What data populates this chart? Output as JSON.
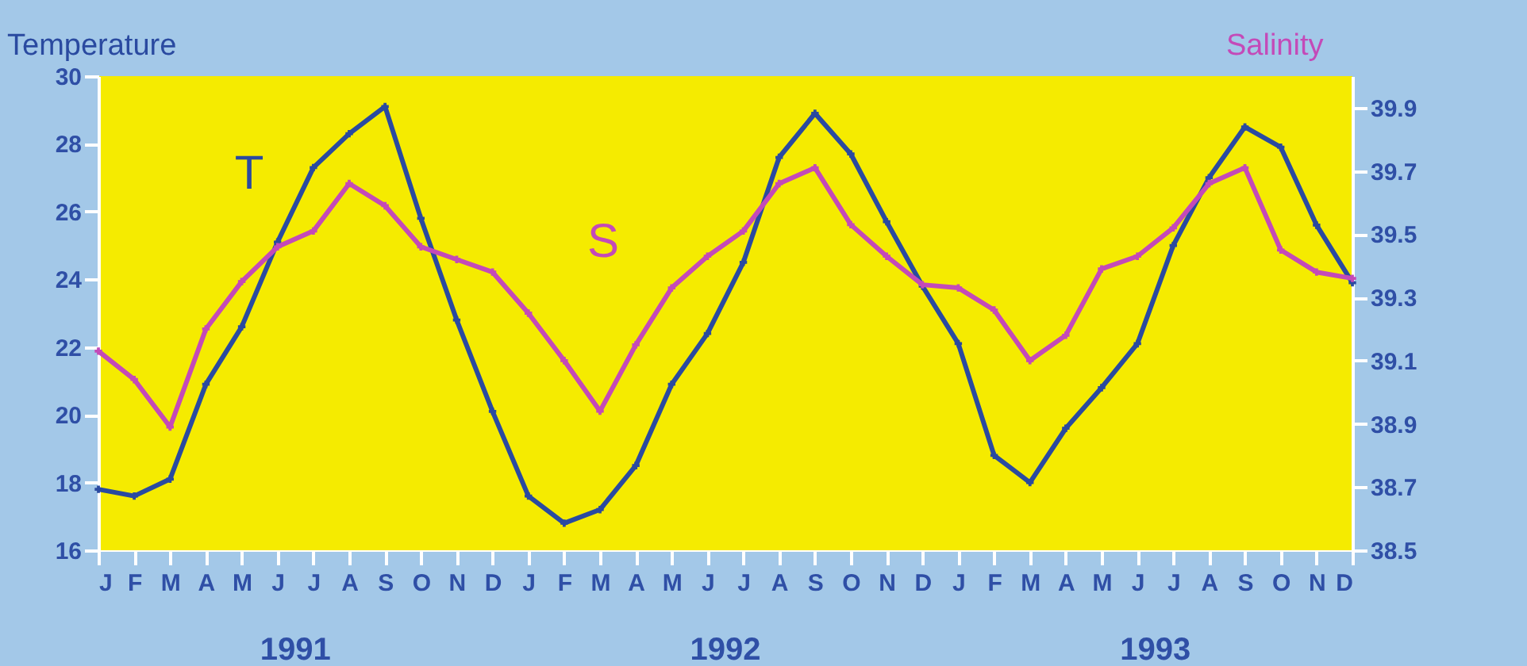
{
  "chart_data": {
    "type": "line",
    "ylabel": "Temperature",
    "y2label": "Salinity",
    "categories": [
      "J",
      "F",
      "M",
      "A",
      "M",
      "J",
      "J",
      "A",
      "S",
      "O",
      "N",
      "D",
      "J",
      "F",
      "M",
      "A",
      "M",
      "J",
      "J",
      "A",
      "S",
      "O",
      "N",
      "D",
      "J",
      "F",
      "M",
      "A",
      "M",
      "J",
      "J",
      "A",
      "S",
      "O",
      "N",
      "D"
    ],
    "series": [
      {
        "name": "T",
        "color": "#2a4aa0",
        "values": [
          17.8,
          17.6,
          18.1,
          20.9,
          22.6,
          25.1,
          27.3,
          28.3,
          29.1,
          25.8,
          22.8,
          20.1,
          17.6,
          16.8,
          17.2,
          18.5,
          20.9,
          22.4,
          24.5,
          27.6,
          28.9,
          27.7,
          25.7,
          23.8,
          22.1,
          18.8,
          18.0,
          19.6,
          20.8,
          22.1,
          25.0,
          27.0,
          28.5,
          27.9,
          25.6,
          23.9
        ]
      },
      {
        "name": "S",
        "color": "#c44ab8",
        "axis": "y2",
        "values": [
          39.13,
          39.04,
          38.89,
          39.2,
          39.35,
          39.46,
          39.51,
          39.66,
          39.59,
          39.46,
          39.42,
          39.38,
          39.25,
          39.1,
          38.94,
          39.15,
          39.33,
          39.43,
          39.51,
          39.66,
          39.71,
          39.53,
          39.43,
          39.34,
          39.33,
          39.26,
          39.1,
          39.18,
          39.39,
          39.43,
          39.52,
          39.66,
          39.71,
          39.45,
          39.38,
          39.36
        ]
      }
    ],
    "ylim": [
      16,
      30
    ],
    "yticks": [
      16,
      18,
      20,
      22,
      24,
      26,
      28,
      30
    ],
    "y2lim": [
      38.5,
      40.0
    ],
    "y2ticks": [
      38.5,
      38.7,
      38.9,
      39.1,
      39.3,
      39.5,
      39.7,
      39.9
    ],
    "annotations": [
      "1991",
      "1992",
      "1993"
    ],
    "marker": "cross",
    "line_style": "solid",
    "grid": false
  }
}
